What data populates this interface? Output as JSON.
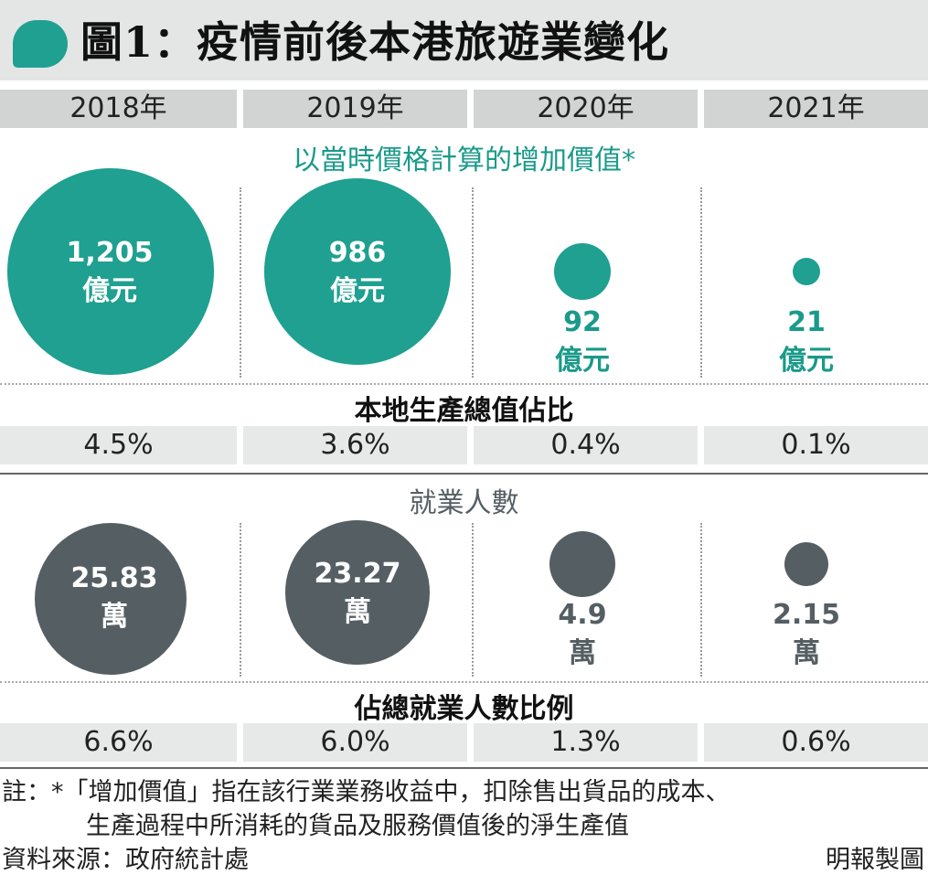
{
  "title": "圖1：疫情前後本港旅遊業變化",
  "colors": {
    "teal": "#1fa091",
    "gray": "#555f63"
  },
  "years": [
    "2018年",
    "2019年",
    "2020年",
    "2021年"
  ],
  "value_added": {
    "section_title": "以當時價格計算的增加價值*",
    "items": [
      {
        "value": "1,205",
        "unit": "億元"
      },
      {
        "value": "986",
        "unit": "億元"
      },
      {
        "value": "92",
        "unit": "億元"
      },
      {
        "value": "21",
        "unit": "億元"
      }
    ]
  },
  "gdp_share": {
    "section_title": "本地生產總值佔比",
    "items": [
      "4.5%",
      "3.6%",
      "0.4%",
      "0.1%"
    ]
  },
  "employment": {
    "section_title": "就業人數",
    "items": [
      {
        "value": "25.83",
        "unit": "萬"
      },
      {
        "value": "23.27",
        "unit": "萬"
      },
      {
        "value": "4.9",
        "unit": "萬"
      },
      {
        "value": "2.15",
        "unit": "萬"
      }
    ]
  },
  "employment_share": {
    "section_title": "佔總就業人數比例",
    "items": [
      "6.6%",
      "6.0%",
      "1.3%",
      "0.6%"
    ]
  },
  "notes": {
    "note_line1": "註：*「增加價值」指在該行業業務收益中，扣除售出貨品的成本、",
    "note_line2": "生產過程中所消耗的貨品及服務價值後的淨生產值",
    "source": "資料來源：政府統計處",
    "credit": "明報製圖"
  },
  "chart_data": [
    {
      "type": "bubble",
      "title": "以當時價格計算的增加價值*",
      "categories": [
        "2018年",
        "2019年",
        "2020年",
        "2021年"
      ],
      "values": [
        1205,
        986,
        92,
        21
      ],
      "unit": "億元",
      "color": "#1fa091"
    },
    {
      "type": "table",
      "title": "本地生產總值佔比",
      "categories": [
        "2018年",
        "2019年",
        "2020年",
        "2021年"
      ],
      "values": [
        4.5,
        3.6,
        0.4,
        0.1
      ],
      "unit": "%"
    },
    {
      "type": "bubble",
      "title": "就業人數",
      "categories": [
        "2018年",
        "2019年",
        "2020年",
        "2021年"
      ],
      "values": [
        25.83,
        23.27,
        4.9,
        2.15
      ],
      "unit": "萬",
      "color": "#555f63"
    },
    {
      "type": "table",
      "title": "佔總就業人數比例",
      "categories": [
        "2018年",
        "2019年",
        "2020年",
        "2021年"
      ],
      "values": [
        6.6,
        6.0,
        1.3,
        0.6
      ],
      "unit": "%"
    }
  ]
}
